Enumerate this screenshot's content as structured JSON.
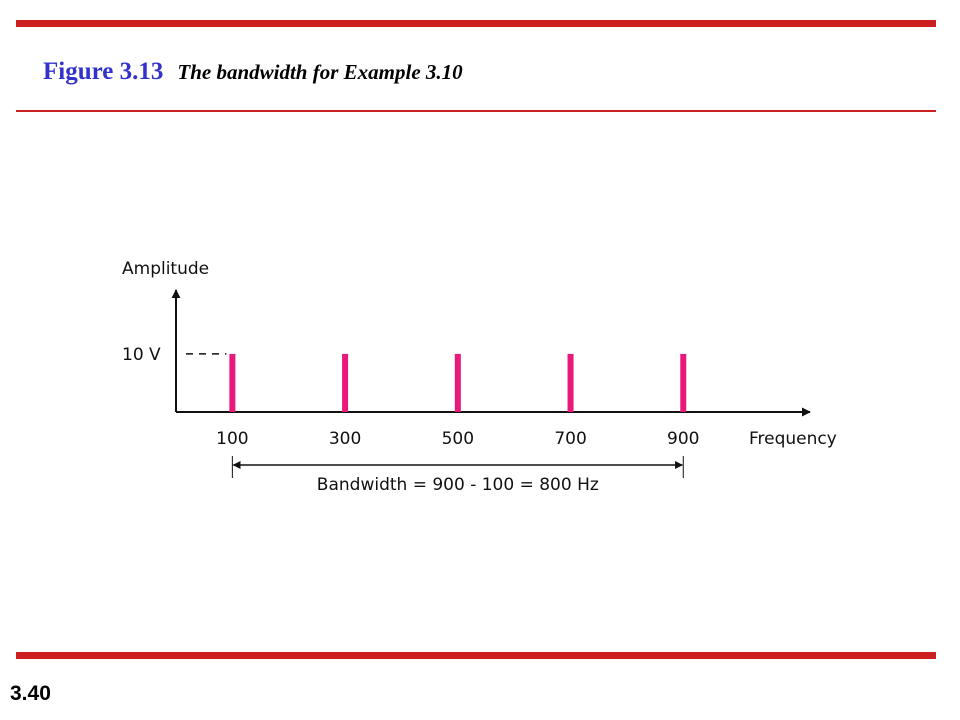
{
  "slide": {
    "figure_number": "Figure 3.13",
    "caption": "The bandwidth for Example 3.10",
    "page_number": "3.40",
    "accent_color": "#cc1f1f",
    "title_color": "#3333cc"
  },
  "chart_data": {
    "type": "bar",
    "xlabel": "Frequency",
    "ylabel": "Amplitude",
    "bar_color": "#e8197a",
    "categories": [
      "100",
      "300",
      "500",
      "700",
      "900"
    ],
    "x": [
      100,
      300,
      500,
      700,
      900
    ],
    "values": [
      10,
      10,
      10,
      10,
      10
    ],
    "y_ticks": [
      {
        "value": 10,
        "label": "10 V"
      }
    ],
    "xlim": [
      0,
      1100
    ],
    "ylim": [
      0,
      21
    ],
    "grid": false,
    "annotations": {
      "bandwidth_label": "Bandwidth = 900 - 100 = 800 Hz",
      "bandwidth_from": 100,
      "bandwidth_to": 900
    }
  }
}
